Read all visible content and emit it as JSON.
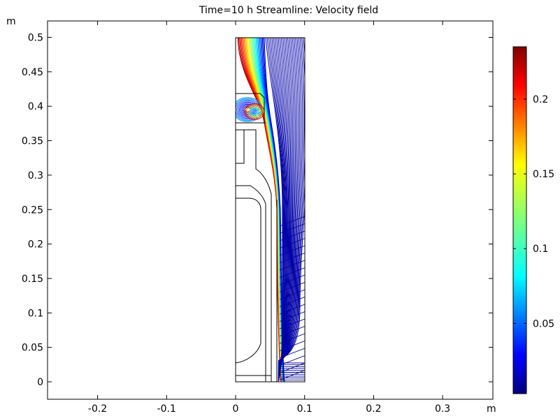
{
  "chart_data": {
    "type": "streamline",
    "title": "Time=10 h   Streamline: Velocity field",
    "xunit": "m",
    "yunit": "m",
    "xlim": [
      -0.27,
      0.375
    ],
    "ylim": [
      -0.025,
      0.525
    ],
    "xticks": [
      "-0.2",
      "-0.1",
      "0",
      "0.1",
      "0.2",
      "0.3"
    ],
    "yticks": [
      "0",
      "0.05",
      "0.1",
      "0.15",
      "0.2",
      "0.25",
      "0.3",
      "0.35",
      "0.4",
      "0.45",
      "0.5"
    ],
    "colorbar": {
      "colormap": "rainbow",
      "range": [
        0.003,
        0.235
      ],
      "ticks": [
        "0.05",
        "0.1",
        "0.15",
        "0.2"
      ]
    },
    "geometry": {
      "domain": {
        "r": [
          0,
          0.1
        ],
        "z": [
          0,
          0.5
        ]
      }
    },
    "grid": false
  }
}
